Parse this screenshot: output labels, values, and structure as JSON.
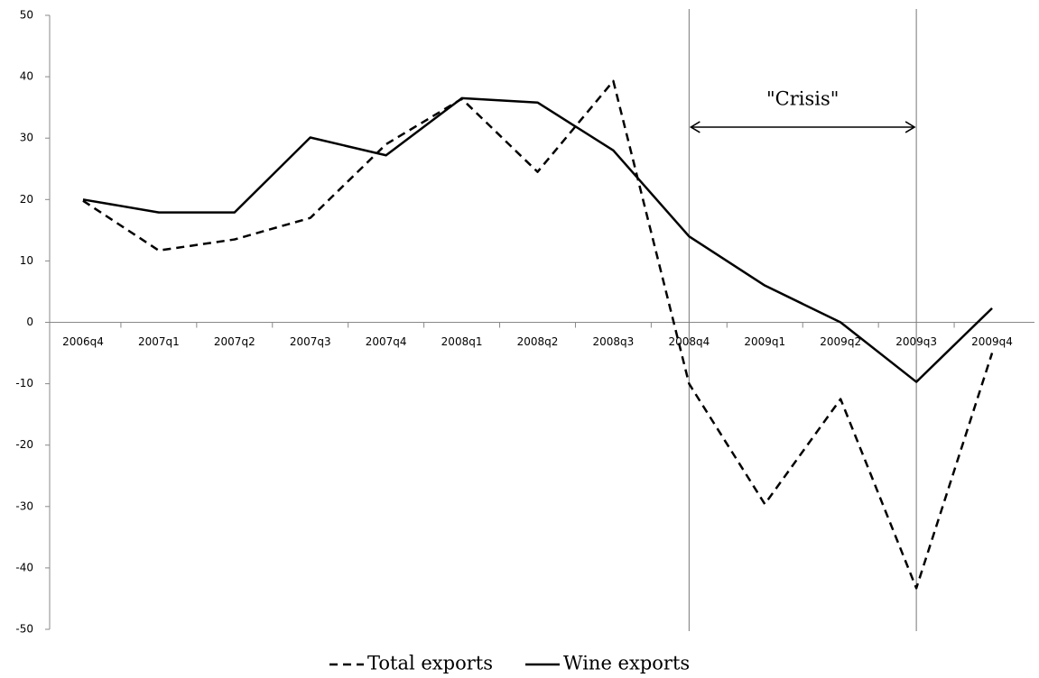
{
  "chart_data": {
    "type": "line",
    "categories": [
      "2006q4",
      "2007q1",
      "2007q2",
      "2007q3",
      "2007q4",
      "2008q1",
      "2008q2",
      "2008q3",
      "2008q4",
      "2009q1",
      "2009q2",
      "2009q3",
      "2009q4"
    ],
    "series": [
      {
        "name": "Total exports",
        "color": "#000000",
        "dash": true,
        "values": [
          19.8,
          11.7,
          13.5,
          17,
          29,
          36.4,
          24.5,
          39.3,
          -10,
          -29.6,
          -12.5,
          -43.3,
          -5
        ]
      },
      {
        "name": "Wine exports",
        "color": "#000000",
        "dash": false,
        "values": [
          20,
          17.9,
          17.9,
          30.1,
          27.2,
          36.5,
          35.8,
          28,
          14,
          6,
          0,
          -9.7,
          2.3
        ]
      }
    ],
    "ylim": [
      -50,
      50
    ],
    "yticks": [
      -50,
      -40,
      -30,
      -20,
      -10,
      0,
      10,
      20,
      30,
      40,
      50
    ],
    "grid": false,
    "legend": "bottom",
    "annotations": [
      {
        "text": "\"Crisis\"",
        "range": [
          "2008q4",
          "2009q3"
        ],
        "y": 31.8
      }
    ]
  }
}
